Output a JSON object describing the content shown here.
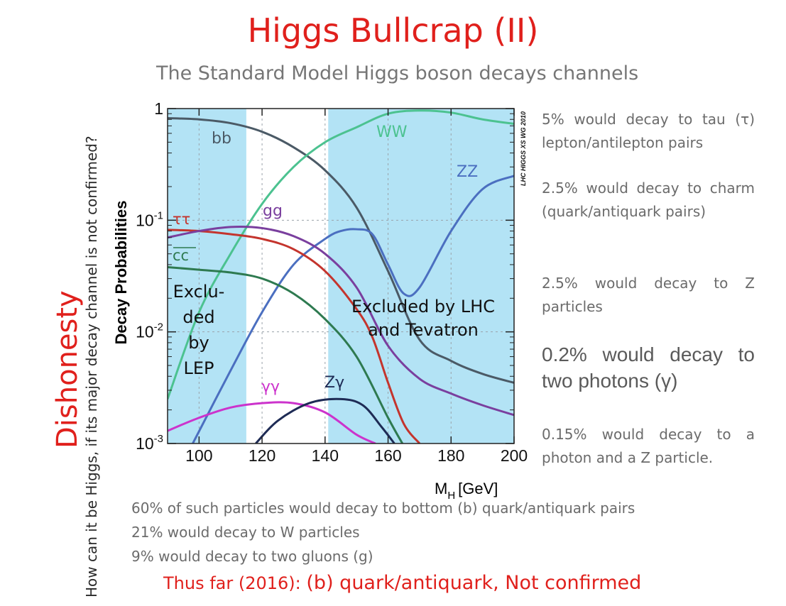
{
  "slide": {
    "title": "Higgs Bullcrap (II)",
    "subtitle": "The Standard Model Higgs boson decays channels",
    "side_label": "Dishonesty",
    "side_question": "How can it be Higgs, if its major decay channel is not confirmed?",
    "right_notes": [
      "5% would decay to tau (τ) lepton/antilepton pairs",
      "2.5% would decay to charm (quark/antiquark pairs)",
      "2.5% would decay to Z particles",
      "0.2% would decay to two photons (γ)",
      "0.15% would decay to a photon and a Z particle."
    ],
    "bottom_notes": [
      "60% of such particles would decay to bottom (b) quark/antiquark pairs",
      "21% would decay to W particles",
      "9% would decay to two gluons (g)"
    ],
    "conclusion_prefix": "Thus far (2016): ",
    "conclusion_emphasis": "(b) quark/antiquark, Not confirmed",
    "colors": {
      "accent": "#e0201c",
      "note_text": "#6b6b6b",
      "excluded_band": "#b3e3f5"
    }
  },
  "chart_data": {
    "type": "line",
    "title": "",
    "xlabel": "M",
    "xlabel_sub": "H",
    "xlabel_unit": "[GeV]",
    "ylabel": "Decay Probabilities",
    "xlim": [
      90,
      200
    ],
    "ylim": [
      0.001,
      1
    ],
    "yscale": "log",
    "x_ticks": [
      100,
      120,
      140,
      160,
      180,
      200
    ],
    "y_ticks": [
      {
        "value": 1,
        "base": "1",
        "exp": ""
      },
      {
        "value": 0.1,
        "base": "10",
        "exp": "-1"
      },
      {
        "value": 0.01,
        "base": "10",
        "exp": "-2"
      },
      {
        "value": 0.001,
        "base": "10",
        "exp": "-3"
      }
    ],
    "watermark": "LHC HIGGS XS WG 2010",
    "excluded_regions": [
      {
        "from": 90,
        "to": 115,
        "label": [
          "Exclu-",
          "ded",
          "by",
          "LEP"
        ]
      },
      {
        "from": 141,
        "to": 200,
        "label": [
          "Excluded by LHC",
          "and Tevatron"
        ]
      }
    ],
    "series": [
      {
        "name": "bb",
        "color": "#4b5a66",
        "x": [
          90,
          100,
          110,
          120,
          130,
          140,
          150,
          160,
          170,
          180,
          190,
          200
        ],
        "y": [
          0.82,
          0.8,
          0.74,
          0.62,
          0.45,
          0.28,
          0.13,
          0.035,
          0.0085,
          0.0055,
          0.0042,
          0.0035
        ]
      },
      {
        "name": "WW",
        "color": "#4cc290",
        "x": [
          90,
          100,
          110,
          120,
          130,
          140,
          150,
          160,
          170,
          180,
          190,
          200
        ],
        "y": [
          0.0025,
          0.015,
          0.05,
          0.14,
          0.3,
          0.5,
          0.68,
          0.9,
          0.96,
          0.92,
          0.8,
          0.73
        ]
      },
      {
        "name": "ZZ",
        "color": "#4b6fc0",
        "x": [
          98,
          110,
          120,
          130,
          140,
          145,
          150,
          155,
          160,
          165,
          170,
          180,
          190,
          200
        ],
        "y": [
          0.001,
          0.0045,
          0.015,
          0.04,
          0.068,
          0.08,
          0.083,
          0.075,
          0.04,
          0.022,
          0.025,
          0.08,
          0.19,
          0.25
        ]
      },
      {
        "name": "ττ",
        "color": "#c4342d",
        "x": [
          90,
          100,
          110,
          120,
          130,
          140,
          150,
          155,
          160,
          165,
          170
        ],
        "y": [
          0.082,
          0.08,
          0.075,
          0.068,
          0.055,
          0.035,
          0.016,
          0.009,
          0.0035,
          0.0015,
          0.001
        ]
      },
      {
        "name": "gg",
        "color": "#7a3f9e",
        "x": [
          90,
          100,
          110,
          120,
          130,
          140,
          150,
          160,
          170,
          180,
          190,
          200
        ],
        "y": [
          0.07,
          0.08,
          0.087,
          0.085,
          0.072,
          0.05,
          0.025,
          0.0075,
          0.0038,
          0.0028,
          0.0022,
          0.0018
        ]
      },
      {
        "name": "cc",
        "color": "#2e7a50",
        "x": [
          90,
          100,
          110,
          120,
          130,
          140,
          150,
          160,
          165
        ],
        "y": [
          0.038,
          0.036,
          0.034,
          0.03,
          0.022,
          0.013,
          0.006,
          0.0017,
          0.00095
        ]
      },
      {
        "name": "γγ",
        "color": "#cc33cc",
        "x": [
          90,
          100,
          110,
          120,
          130,
          140,
          150,
          156
        ],
        "y": [
          0.0013,
          0.0017,
          0.0021,
          0.0023,
          0.0023,
          0.0019,
          0.0012,
          0.001
        ]
      },
      {
        "name": "Zγ",
        "color": "#1e2b55",
        "x": [
          118,
          125,
          135,
          145,
          152,
          158,
          162
        ],
        "y": [
          0.001,
          0.0016,
          0.0023,
          0.0025,
          0.0022,
          0.0014,
          0.001
        ]
      }
    ]
  }
}
